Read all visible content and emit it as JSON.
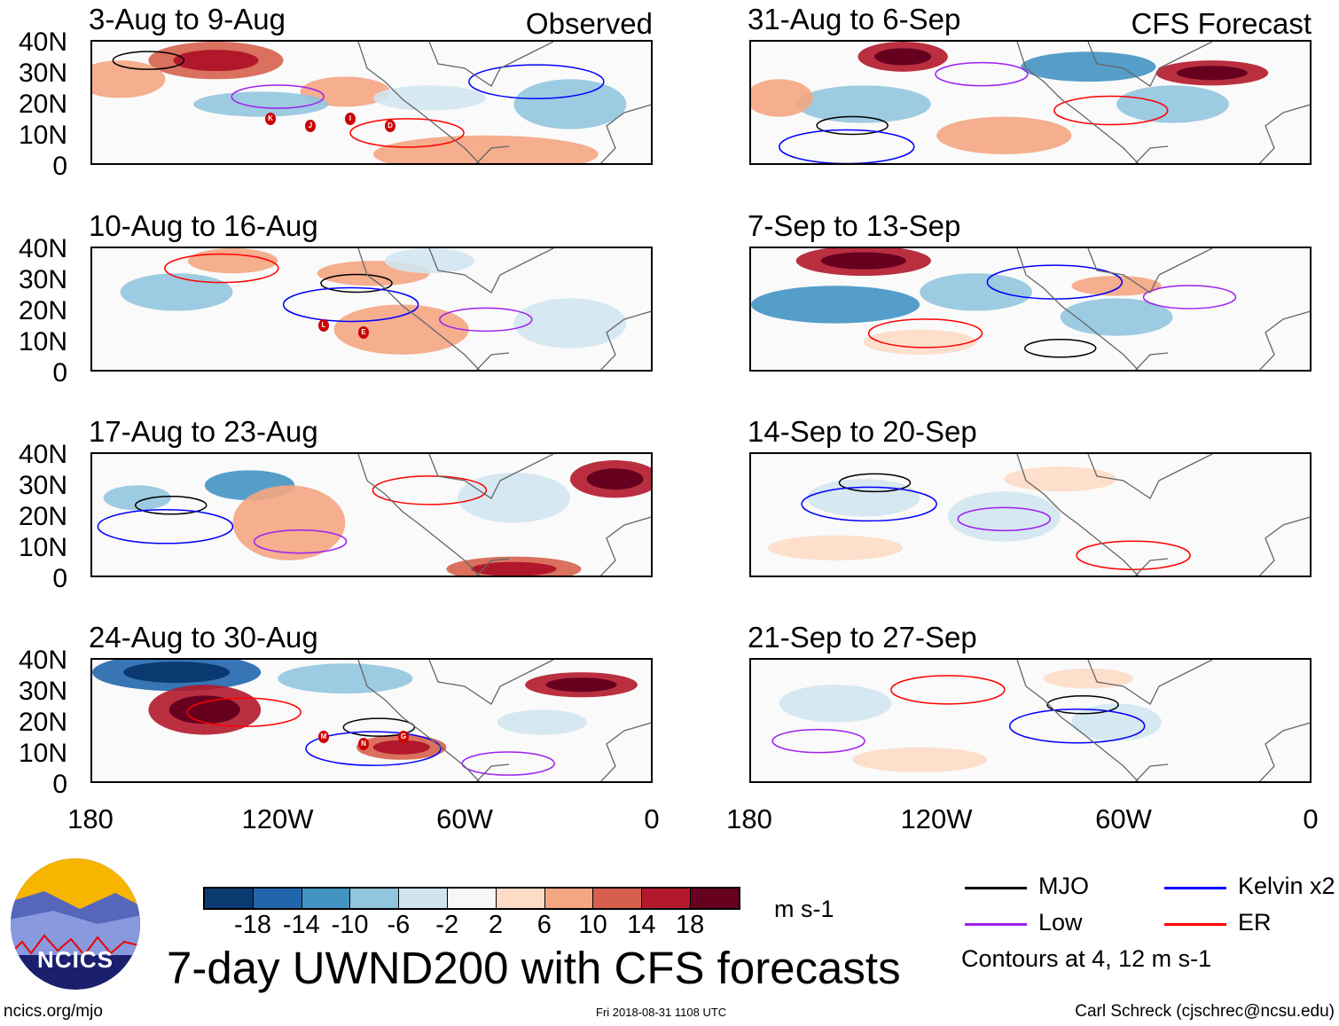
{
  "panels": [
    {
      "title": "3-Aug to 9-Aug",
      "tag": "Observed",
      "storms": [
        "K",
        "J",
        "I",
        "D"
      ]
    },
    {
      "title": "10-Aug to 16-Aug",
      "storms": [
        "L",
        "E"
      ]
    },
    {
      "title": "17-Aug to 23-Aug",
      "storms": []
    },
    {
      "title": "24-Aug to 30-Aug",
      "storms": [
        "M",
        "N",
        "G"
      ]
    },
    {
      "title": "31-Aug to 6-Sep",
      "tag": "CFS Forecast",
      "storms": []
    },
    {
      "title": "7-Sep to 13-Sep",
      "storms": []
    },
    {
      "title": "14-Sep to 20-Sep",
      "storms": []
    },
    {
      "title": "21-Sep to 27-Sep",
      "storms": []
    }
  ],
  "y_ticks": [
    "40N",
    "30N",
    "20N",
    "10N",
    "0"
  ],
  "x_ticks": [
    "180",
    "120W",
    "60W",
    "0"
  ],
  "colorbar": {
    "colors": [
      "#0b3a70",
      "#2166ac",
      "#4393c3",
      "#92c5de",
      "#d1e5f0",
      "#f7f7f7",
      "#fddbc7",
      "#f4a582",
      "#d6604d",
      "#b2182b",
      "#67001f"
    ],
    "labels": [
      "-18",
      "-14",
      "-10",
      "-6",
      "-2",
      "2",
      "6",
      "10",
      "14",
      "18"
    ],
    "units": "m s-1"
  },
  "legend": {
    "items": [
      {
        "label": "MJO",
        "color": "#000000"
      },
      {
        "label": "Kelvin x2",
        "color": "#0000ff"
      },
      {
        "label": "Low",
        "color": "#a020f0"
      },
      {
        "label": "ER",
        "color": "#ff0000"
      }
    ],
    "note": "Contours at 4, 12 m s-1"
  },
  "logo_text": "NCICS",
  "title": "7-day UWND200 with CFS forecasts",
  "footer": {
    "left": "ncics.org/mjo",
    "center": "Fri 2018-08-31 1108 UTC",
    "right": "Carl Schreck (cjschrec@ncsu.edu)"
  }
}
